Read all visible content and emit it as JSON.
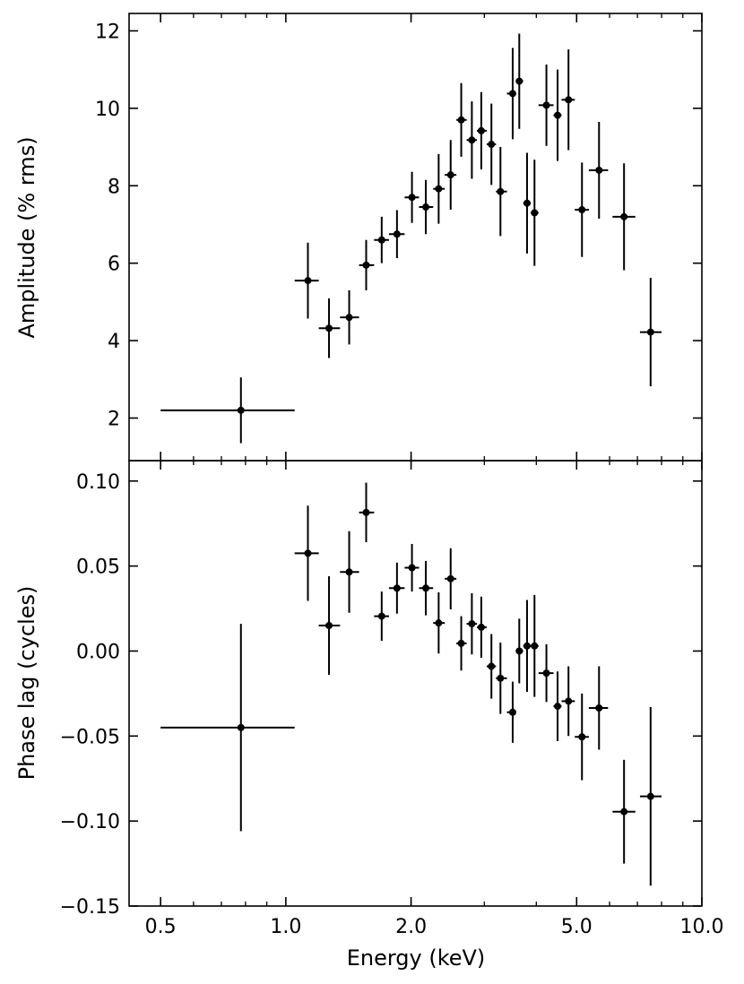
{
  "chart_data": [
    {
      "type": "scatter",
      "panel": "top",
      "ylabel": "Amplitude (% rms)",
      "xlabel": "",
      "xscale": "log",
      "xlim": [
        0.42,
        10.0
      ],
      "ylim": [
        0.9,
        12.45
      ],
      "yticks": [
        2,
        4,
        6,
        8,
        10,
        12
      ],
      "ytick_labels": [
        "2",
        "4",
        "6",
        "8",
        "10",
        "12"
      ],
      "points": [
        {
          "x": 0.78,
          "xlo": 0.5,
          "xhi": 1.05,
          "y": 2.2,
          "yerr": 0.85
        },
        {
          "x": 1.13,
          "xlo": 1.05,
          "xhi": 1.2,
          "y": 5.55,
          "yerr": 0.98
        },
        {
          "x": 1.27,
          "xlo": 1.2,
          "xhi": 1.35,
          "y": 4.32,
          "yerr": 0.77
        },
        {
          "x": 1.42,
          "xlo": 1.35,
          "xhi": 1.5,
          "y": 4.6,
          "yerr": 0.7
        },
        {
          "x": 1.56,
          "xlo": 1.5,
          "xhi": 1.63,
          "y": 5.95,
          "yerr": 0.65
        },
        {
          "x": 1.7,
          "xlo": 1.63,
          "xhi": 1.77,
          "y": 6.6,
          "yerr": 0.6
        },
        {
          "x": 1.85,
          "xlo": 1.77,
          "xhi": 1.93,
          "y": 6.75,
          "yerr": 0.62
        },
        {
          "x": 2.01,
          "xlo": 1.93,
          "xhi": 2.09,
          "y": 7.7,
          "yerr": 0.66
        },
        {
          "x": 2.17,
          "xlo": 2.09,
          "xhi": 2.26,
          "y": 7.45,
          "yerr": 0.7
        },
        {
          "x": 2.33,
          "xlo": 2.26,
          "xhi": 2.41,
          "y": 7.92,
          "yerr": 0.9
        },
        {
          "x": 2.49,
          "xlo": 2.41,
          "xhi": 2.57,
          "y": 8.28,
          "yerr": 0.9
        },
        {
          "x": 2.64,
          "xlo": 2.57,
          "xhi": 2.72,
          "y": 9.7,
          "yerr": 0.95
        },
        {
          "x": 2.8,
          "xlo": 2.72,
          "xhi": 2.88,
          "y": 9.18,
          "yerr": 1.0
        },
        {
          "x": 2.95,
          "xlo": 2.88,
          "xhi": 3.04,
          "y": 9.42,
          "yerr": 1.0
        },
        {
          "x": 3.12,
          "xlo": 3.04,
          "xhi": 3.2,
          "y": 9.07,
          "yerr": 1.05
        },
        {
          "x": 3.28,
          "xlo": 3.2,
          "xhi": 3.4,
          "y": 7.85,
          "yerr": 1.15
        },
        {
          "x": 3.51,
          "xlo": 3.4,
          "xhi": 3.57,
          "y": 10.38,
          "yerr": 1.18
        },
        {
          "x": 3.64,
          "xlo": 3.57,
          "xhi": 3.72,
          "y": 10.7,
          "yerr": 1.23
        },
        {
          "x": 3.8,
          "xlo": 3.72,
          "xhi": 3.88,
          "y": 7.55,
          "yerr": 1.3
        },
        {
          "x": 3.96,
          "xlo": 3.88,
          "xhi": 4.05,
          "y": 7.3,
          "yerr": 1.37
        },
        {
          "x": 4.23,
          "xlo": 4.05,
          "xhi": 4.4,
          "y": 10.08,
          "yerr": 1.05
        },
        {
          "x": 4.5,
          "xlo": 4.4,
          "xhi": 4.6,
          "y": 9.82,
          "yerr": 1.18
        },
        {
          "x": 4.78,
          "xlo": 4.6,
          "xhi": 4.95,
          "y": 10.22,
          "yerr": 1.3
        },
        {
          "x": 5.15,
          "xlo": 4.95,
          "xhi": 5.35,
          "y": 7.38,
          "yerr": 1.22
        },
        {
          "x": 5.66,
          "xlo": 5.35,
          "xhi": 5.95,
          "y": 8.4,
          "yerr": 1.25
        },
        {
          "x": 6.5,
          "xlo": 6.1,
          "xhi": 6.92,
          "y": 7.2,
          "yerr": 1.38
        },
        {
          "x": 7.53,
          "xlo": 7.1,
          "xhi": 8.0,
          "y": 4.22,
          "yerr": 1.4
        }
      ]
    },
    {
      "type": "scatter",
      "panel": "bottom",
      "ylabel": "Phase lag (cycles)",
      "xlabel": "Energy (keV)",
      "xscale": "log",
      "xlim": [
        0.42,
        10.0
      ],
      "xticks": [
        0.5,
        1.0,
        2.0,
        5.0,
        10.0
      ],
      "xtick_labels": [
        "0.5",
        "1.0",
        "2.0",
        "5.0",
        "10.0"
      ],
      "ylim": [
        -0.15,
        0.112
      ],
      "yticks": [
        -0.15,
        -0.1,
        -0.05,
        0.0,
        0.05,
        0.1
      ],
      "ytick_labels": [
        "−0.15",
        "−0.10",
        "−0.05",
        "0.00",
        "0.05",
        "0.10"
      ],
      "points": [
        {
          "x": 0.78,
          "xlo": 0.5,
          "xhi": 1.05,
          "y": -0.045,
          "yerr": 0.061
        },
        {
          "x": 1.13,
          "xlo": 1.05,
          "xhi": 1.2,
          "y": 0.0575,
          "yerr": 0.028
        },
        {
          "x": 1.27,
          "xlo": 1.2,
          "xhi": 1.35,
          "y": 0.015,
          "yerr": 0.029
        },
        {
          "x": 1.42,
          "xlo": 1.35,
          "xhi": 1.5,
          "y": 0.0465,
          "yerr": 0.024
        },
        {
          "x": 1.56,
          "xlo": 1.5,
          "xhi": 1.63,
          "y": 0.0815,
          "yerr": 0.0175
        },
        {
          "x": 1.7,
          "xlo": 1.63,
          "xhi": 1.77,
          "y": 0.0205,
          "yerr": 0.0145
        },
        {
          "x": 1.85,
          "xlo": 1.77,
          "xhi": 1.93,
          "y": 0.037,
          "yerr": 0.015
        },
        {
          "x": 2.01,
          "xlo": 1.93,
          "xhi": 2.09,
          "y": 0.049,
          "yerr": 0.014
        },
        {
          "x": 2.17,
          "xlo": 2.09,
          "xhi": 2.26,
          "y": 0.037,
          "yerr": 0.016
        },
        {
          "x": 2.33,
          "xlo": 2.26,
          "xhi": 2.41,
          "y": 0.0165,
          "yerr": 0.018
        },
        {
          "x": 2.49,
          "xlo": 2.41,
          "xhi": 2.57,
          "y": 0.0425,
          "yerr": 0.018
        },
        {
          "x": 2.64,
          "xlo": 2.57,
          "xhi": 2.72,
          "y": 0.0045,
          "yerr": 0.016
        },
        {
          "x": 2.8,
          "xlo": 2.72,
          "xhi": 2.88,
          "y": 0.016,
          "yerr": 0.018
        },
        {
          "x": 2.95,
          "xlo": 2.88,
          "xhi": 3.04,
          "y": 0.014,
          "yerr": 0.018
        },
        {
          "x": 3.12,
          "xlo": 3.04,
          "xhi": 3.2,
          "y": -0.009,
          "yerr": 0.019
        },
        {
          "x": 3.28,
          "xlo": 3.2,
          "xhi": 3.4,
          "y": -0.016,
          "yerr": 0.021
        },
        {
          "x": 3.51,
          "xlo": 3.4,
          "xhi": 3.57,
          "y": -0.036,
          "yerr": 0.018
        },
        {
          "x": 3.64,
          "xlo": 3.57,
          "xhi": 3.72,
          "y": 0.0,
          "yerr": 0.019
        },
        {
          "x": 3.8,
          "xlo": 3.72,
          "xhi": 3.88,
          "y": 0.003,
          "yerr": 0.027
        },
        {
          "x": 3.96,
          "xlo": 3.88,
          "xhi": 4.05,
          "y": 0.003,
          "yerr": 0.03
        },
        {
          "x": 4.23,
          "xlo": 4.05,
          "xhi": 4.4,
          "y": -0.013,
          "yerr": 0.017
        },
        {
          "x": 4.5,
          "xlo": 4.4,
          "xhi": 4.6,
          "y": -0.0325,
          "yerr": 0.0205
        },
        {
          "x": 4.78,
          "xlo": 4.6,
          "xhi": 4.95,
          "y": -0.0295,
          "yerr": 0.0205
        },
        {
          "x": 5.15,
          "xlo": 4.95,
          "xhi": 5.35,
          "y": -0.0505,
          "yerr": 0.0255
        },
        {
          "x": 5.66,
          "xlo": 5.35,
          "xhi": 5.95,
          "y": -0.0335,
          "yerr": 0.0245
        },
        {
          "x": 6.5,
          "xlo": 6.1,
          "xhi": 6.92,
          "y": -0.0945,
          "yerr": 0.0305
        },
        {
          "x": 7.53,
          "xlo": 7.1,
          "xhi": 8.0,
          "y": -0.0855,
          "yerr": 0.0525
        }
      ]
    }
  ]
}
